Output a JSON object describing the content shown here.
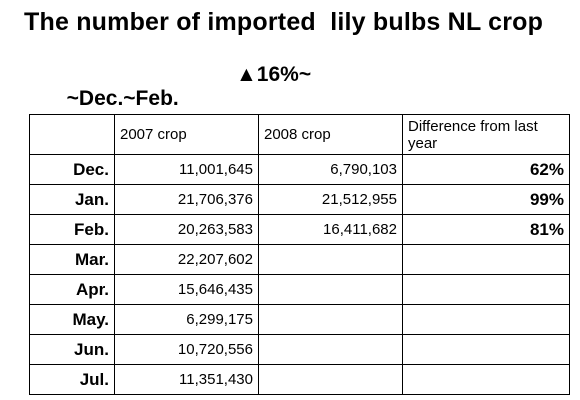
{
  "title": "The number of imported  lily bulbs NL crop",
  "subtitle": {
    "period": "~Dec.~Feb.",
    "change": "▲16%~"
  },
  "table": {
    "headers": [
      "",
      "2007 crop",
      "2008 crop",
      "Difference from last year"
    ],
    "rows": [
      {
        "month": "Dec.",
        "crop_2007": "11,001,645",
        "crop_2008": "6,790,103",
        "difference": "62%"
      },
      {
        "month": "Jan.",
        "crop_2007": "21,706,376",
        "crop_2008": "21,512,955",
        "difference": "99%"
      },
      {
        "month": "Feb.",
        "crop_2007": "20,263,583",
        "crop_2008": "16,411,682",
        "difference": "81%"
      },
      {
        "month": "Mar.",
        "crop_2007": "22,207,602",
        "crop_2008": "",
        "difference": ""
      },
      {
        "month": "Apr.",
        "crop_2007": "15,646,435",
        "crop_2008": "",
        "difference": ""
      },
      {
        "month": "May.",
        "crop_2007": "6,299,175",
        "crop_2008": "",
        "difference": ""
      },
      {
        "month": "Jun.",
        "crop_2007": "10,720,556",
        "crop_2008": "",
        "difference": ""
      },
      {
        "month": "Jul.",
        "crop_2007": "11,351,430",
        "crop_2008": "",
        "difference": ""
      }
    ]
  }
}
